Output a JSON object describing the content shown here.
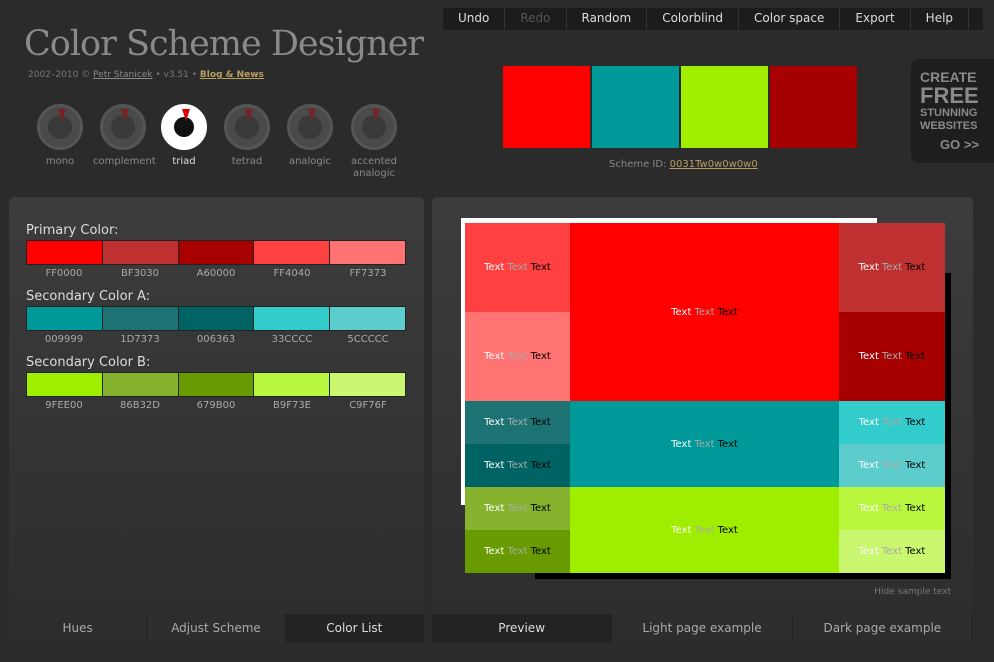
{
  "app": {
    "title": "Color Scheme Designer",
    "copyright": "2002–2010 ©",
    "author": "Petr Stanicek",
    "version": "• v3.51 •",
    "blog_link": "Blog & News"
  },
  "menu": [
    "Undo",
    "Redo",
    "Random",
    "Colorblind",
    "Color space",
    "Export",
    "Help"
  ],
  "modes": [
    {
      "label": "mono",
      "active": false
    },
    {
      "label": "complement",
      "active": false
    },
    {
      "label": "triad",
      "active": true
    },
    {
      "label": "tetrad",
      "active": false
    },
    {
      "label": "analogic",
      "active": false
    },
    {
      "label": "accented analogic",
      "active": false
    }
  ],
  "scheme": {
    "id_label": "Scheme ID:",
    "id_value": "0031Tw0w0w0w0",
    "main_colors": [
      "#FF0000",
      "#009999",
      "#9FEE00",
      "#A60000"
    ]
  },
  "ad": {
    "l1": "CREATE",
    "l2": "FREE",
    "l3a": "STUNNING",
    "l3b": "WEBSITES",
    "go": "GO >>"
  },
  "groups": [
    {
      "label": "Primary Color:",
      "codes": [
        "FF0000",
        "BF3030",
        "A60000",
        "FF4040",
        "FF7373"
      ],
      "colors": [
        "#FF0000",
        "#BF3030",
        "#A60000",
        "#FF4040",
        "#FF7373"
      ]
    },
    {
      "label": "Secondary Color A:",
      "codes": [
        "009999",
        "1D7373",
        "006363",
        "33CCCC",
        "5CCCCC"
      ],
      "colors": [
        "#009999",
        "#1D7373",
        "#006363",
        "#33CCCC",
        "#5CCCCC"
      ]
    },
    {
      "label": "Secondary Color B:",
      "codes": [
        "9FEE00",
        "86B32D",
        "679B00",
        "B9F73E",
        "C9F76F"
      ],
      "colors": [
        "#9FEE00",
        "#86B32D",
        "#679B00",
        "#B9F73E",
        "#C9F76F"
      ]
    }
  ],
  "left_tabs": [
    {
      "label": "Hues",
      "active": false
    },
    {
      "label": "Adjust Scheme",
      "active": false
    },
    {
      "label": "Color List",
      "active": true
    }
  ],
  "preview": {
    "sample_word": "Text",
    "hide_label": "Hide sample text"
  },
  "right_tabs": [
    {
      "label": "Preview",
      "active": true
    },
    {
      "label": "Light page example",
      "active": false
    },
    {
      "label": "Dark page example",
      "active": false
    }
  ]
}
